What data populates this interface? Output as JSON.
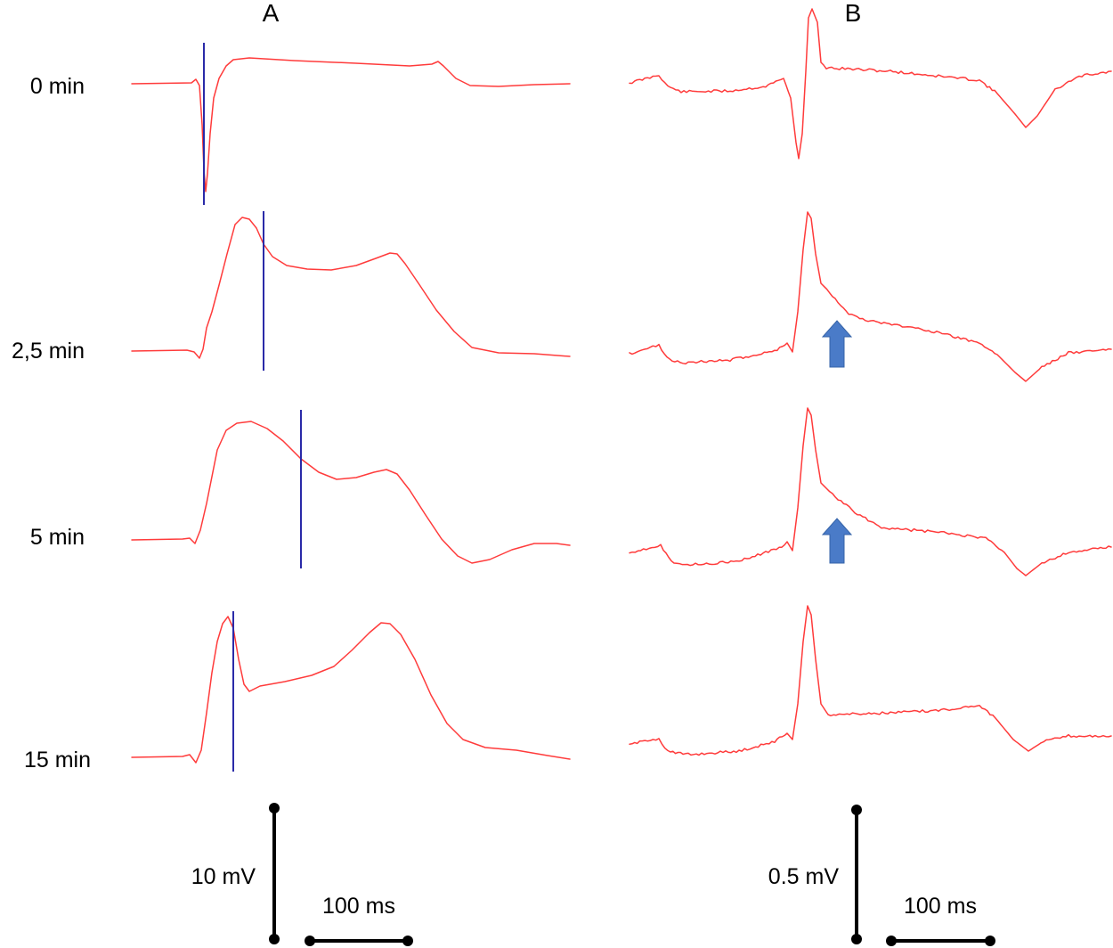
{
  "panels": [
    {
      "label": "A",
      "trace_color": "#ff3b3b",
      "marker_color": "#2a2aa8"
    },
    {
      "label": "B",
      "trace_color": "#ff3b3b",
      "arrow_color": "#4a7bc8"
    }
  ],
  "time_points": [
    "0 min",
    "2,5 min",
    "5 min",
    "15 min"
  ],
  "scale_bars": {
    "A": {
      "voltage": "10 mV",
      "time": "100 ms"
    },
    "B": {
      "voltage": "0.5 mV",
      "time": "100 ms"
    }
  },
  "annotations": {
    "B_arrows_at": [
      "2,5 min",
      "5 min"
    ]
  }
}
